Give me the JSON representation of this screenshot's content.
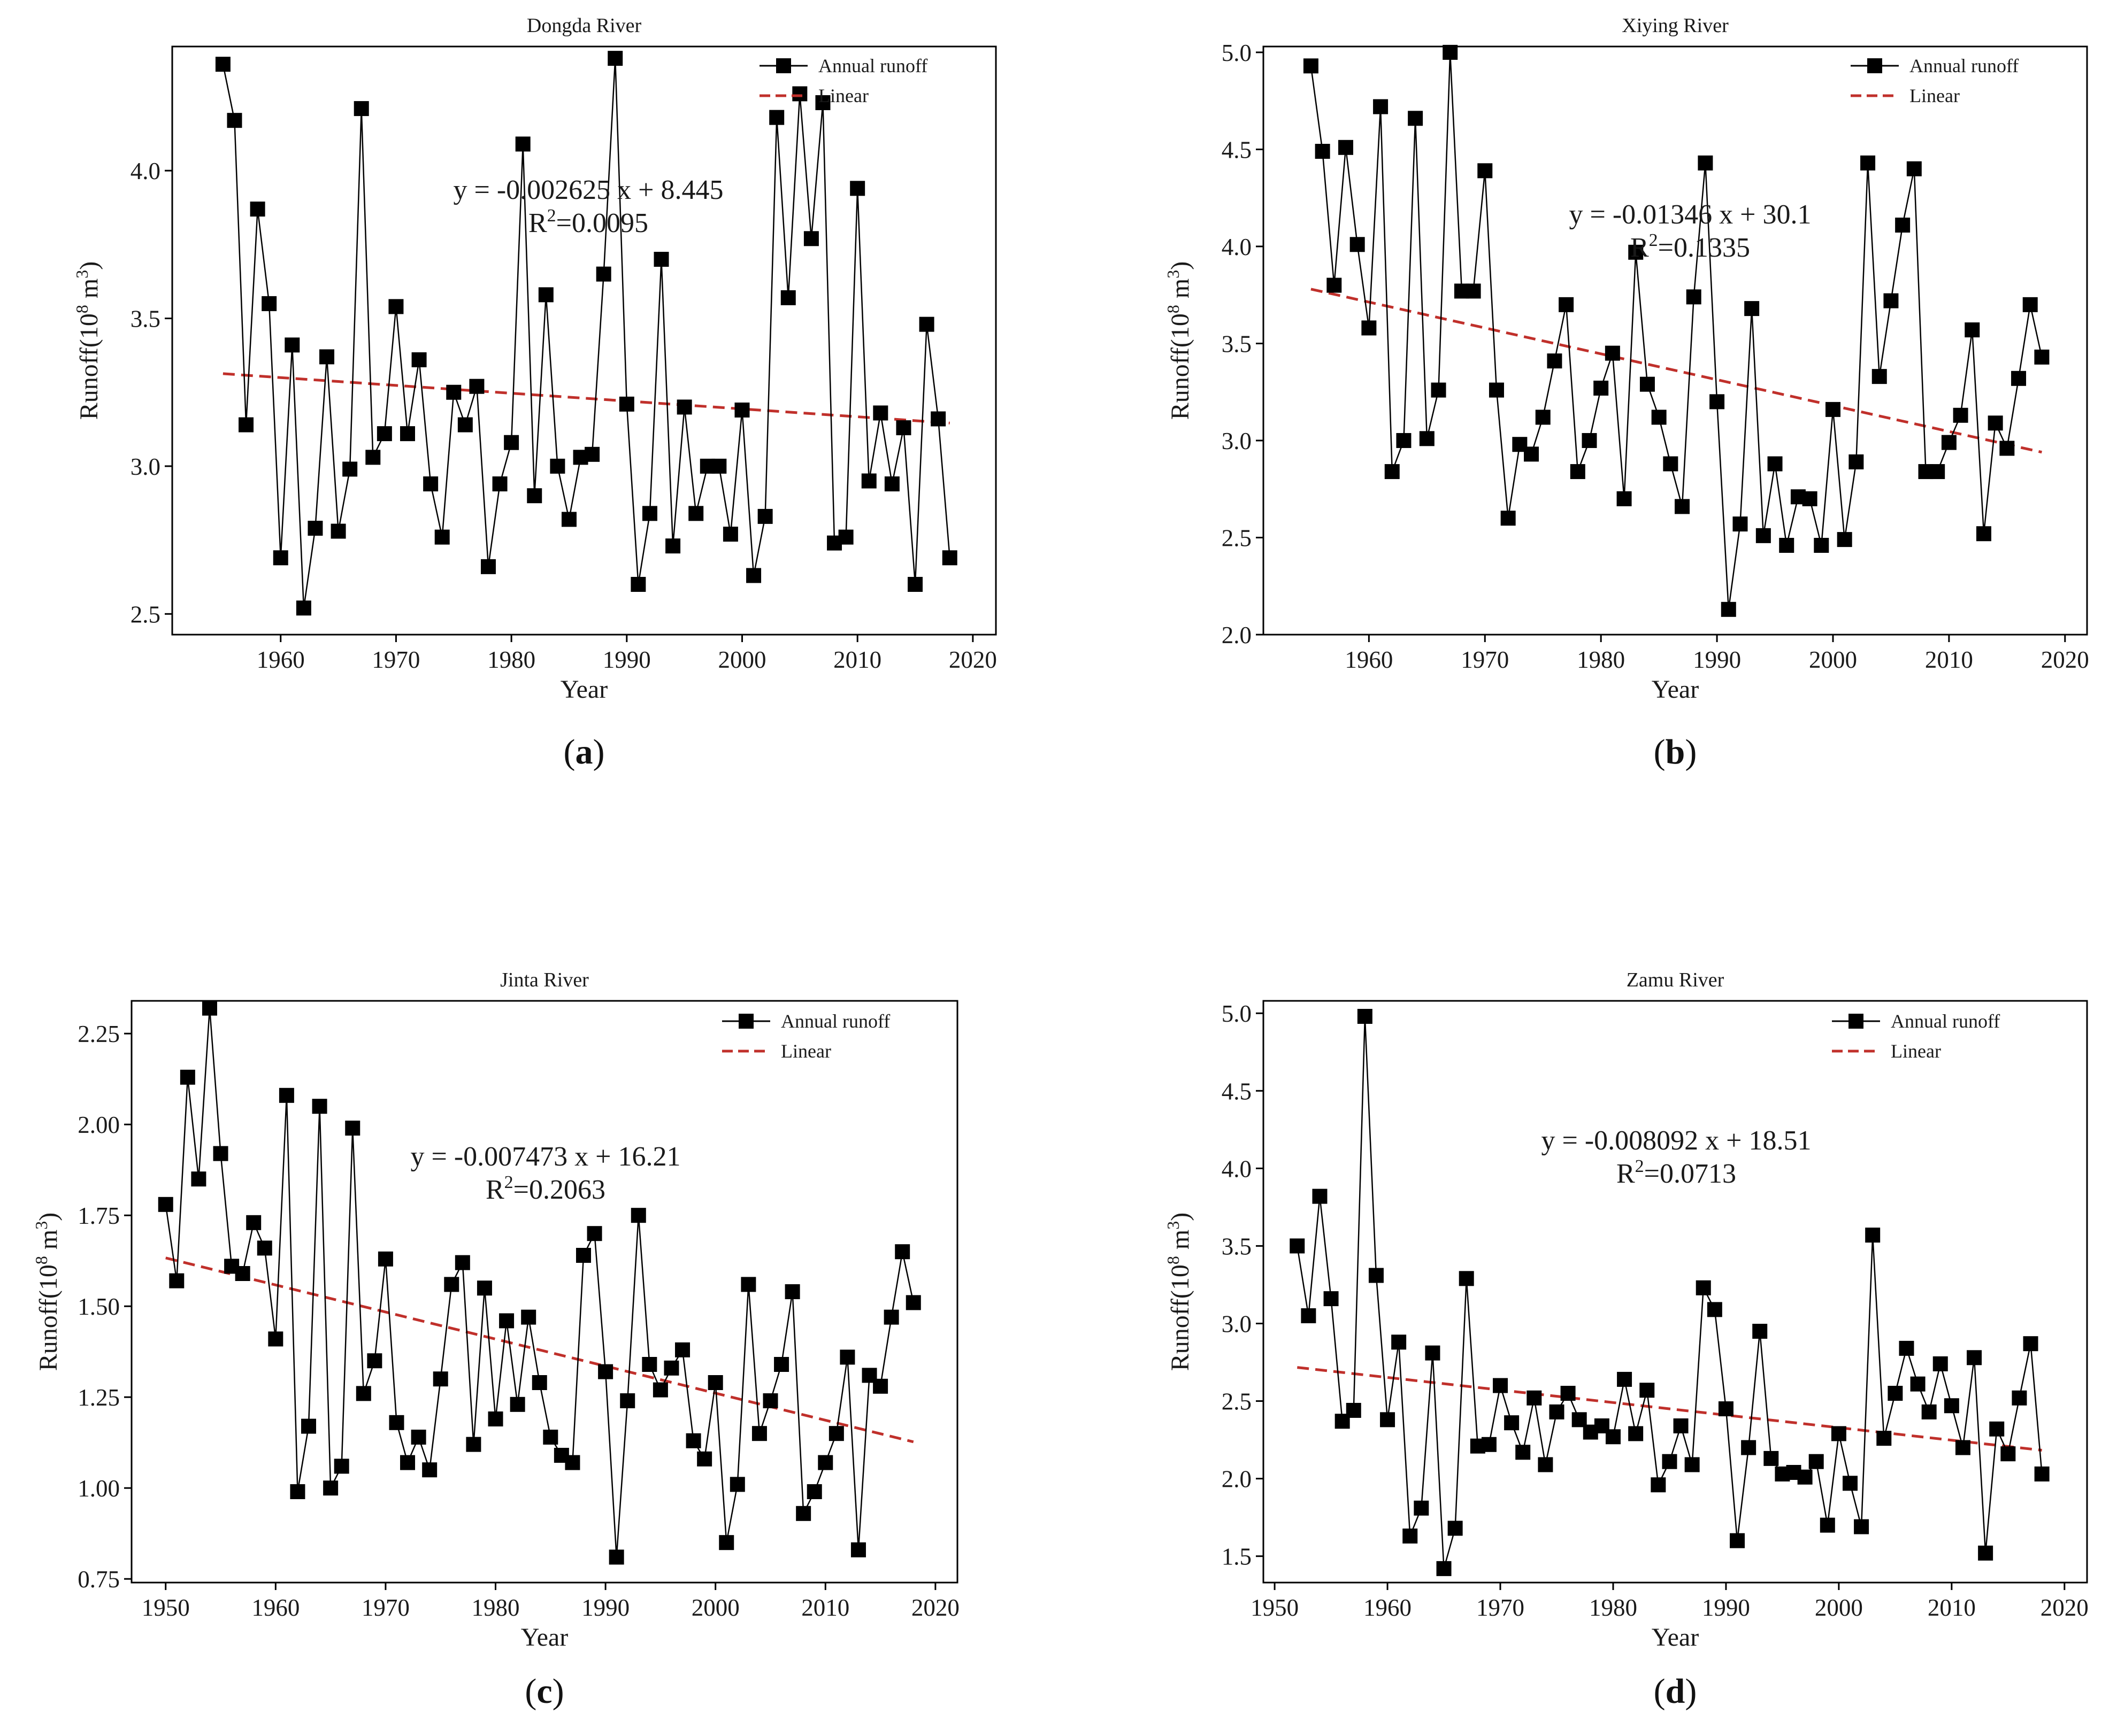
{
  "legend": {
    "series": "Annual runoff",
    "trend": "Linear"
  },
  "colors": {
    "series": "#000000",
    "trend": "#c0302b"
  },
  "chart_data": [
    {
      "type": "line",
      "title": "Dongda River",
      "caption": {
        "open": "(",
        "letter": "a",
        "close": ")"
      },
      "xlabel": "Year",
      "ylabel": {
        "main": "Runoff(10",
        "sup1": "8",
        "mid": " m",
        "sup2": "3",
        "end": ")"
      },
      "xlim": [
        1950.6,
        2022
      ],
      "ylim": [
        2.43,
        4.42
      ],
      "xticks": [
        1960,
        1970,
        1980,
        1990,
        2000,
        2010,
        2020
      ],
      "yticks": [
        2.5,
        3.0,
        3.5,
        4.0
      ],
      "ytick_labels": [
        "2.5",
        "3.0",
        "3.5",
        "4.0"
      ],
      "equation": {
        "line1": "y = -0.002625 x + 8.445",
        "line2_prefix": "R",
        "line2_sup": "2",
        "line2_suffix": "=0.0095"
      },
      "trend": {
        "x": [
          1955,
          2018
        ],
        "y": [
          3.313,
          3.146
        ]
      },
      "series": [
        {
          "name": "Annual runoff",
          "x": [
            1955,
            1956,
            1957,
            1958,
            1959,
            1960,
            1961,
            1962,
            1963,
            1964,
            1965,
            1966,
            1967,
            1968,
            1969,
            1970,
            1971,
            1972,
            1973,
            1974,
            1975,
            1976,
            1977,
            1978,
            1979,
            1980,
            1981,
            1982,
            1983,
            1984,
            1985,
            1986,
            1987,
            1988,
            1989,
            1990,
            1991,
            1992,
            1993,
            1994,
            1995,
            1996,
            1997,
            1998,
            1999,
            2000,
            2001,
            2002,
            2003,
            2004,
            2005,
            2006,
            2007,
            2008,
            2009,
            2010,
            2011,
            2012,
            2013,
            2014,
            2015,
            2016,
            2017,
            2018
          ],
          "y": [
            4.36,
            4.17,
            3.14,
            3.87,
            3.55,
            2.69,
            3.41,
            2.52,
            2.79,
            3.37,
            2.78,
            2.99,
            4.21,
            3.03,
            3.11,
            3.54,
            3.11,
            3.36,
            2.94,
            2.76,
            3.25,
            3.14,
            3.27,
            2.66,
            2.94,
            3.08,
            4.09,
            2.9,
            3.58,
            3.0,
            2.82,
            3.03,
            3.04,
            3.65,
            4.38,
            3.21,
            2.6,
            2.84,
            3.7,
            2.73,
            3.2,
            2.84,
            3.0,
            3.0,
            2.77,
            3.19,
            2.63,
            2.83,
            4.18,
            3.57,
            4.26,
            3.77,
            4.23,
            2.74,
            2.76,
            3.94,
            2.95,
            3.18,
            2.94,
            3.13,
            2.6,
            3.48,
            3.16,
            2.69
          ]
        }
      ]
    },
    {
      "type": "line",
      "title": "Xiying River",
      "caption": {
        "open": "(",
        "letter": "b",
        "close": ")"
      },
      "xlabel": "Year",
      "ylabel": {
        "main": "Runoff(10",
        "sup1": "8",
        "mid": " m",
        "sup2": "3",
        "end": ")"
      },
      "xlim": [
        1950.9,
        2021.9
      ],
      "ylim": [
        2.0,
        5.03
      ],
      "xticks": [
        1960,
        1970,
        1980,
        1990,
        2000,
        2010,
        2020
      ],
      "yticks": [
        2.0,
        2.5,
        3.0,
        3.5,
        4.0,
        4.5,
        5.0
      ],
      "ytick_labels": [
        "2.0",
        "2.5",
        "3.0",
        "3.5",
        "4.0",
        "4.5",
        "5.0"
      ],
      "equation": {
        "line1": "y = -0.01346 x + 30.1",
        "line2_prefix": "R",
        "line2_sup": "2",
        "line2_suffix": "=0.1335"
      },
      "trend": {
        "x": [
          1955,
          2018
        ],
        "y": [
          3.78,
          2.94
        ]
      },
      "series": [
        {
          "name": "Annual runoff",
          "x": [
            1955,
            1956,
            1957,
            1958,
            1959,
            1960,
            1961,
            1962,
            1963,
            1964,
            1965,
            1966,
            1967,
            1968,
            1969,
            1970,
            1971,
            1972,
            1973,
            1974,
            1975,
            1976,
            1977,
            1978,
            1979,
            1980,
            1981,
            1982,
            1983,
            1984,
            1985,
            1986,
            1987,
            1988,
            1989,
            1990,
            1991,
            1992,
            1993,
            1994,
            1995,
            1996,
            1997,
            1998,
            1999,
            2000,
            2001,
            2002,
            2003,
            2004,
            2005,
            2006,
            2007,
            2008,
            2009,
            2010,
            2011,
            2012,
            2013,
            2014,
            2015,
            2016,
            2017,
            2018
          ],
          "y": [
            4.93,
            4.49,
            3.8,
            4.51,
            4.01,
            3.58,
            4.72,
            2.84,
            3.0,
            4.66,
            3.01,
            3.26,
            5.0,
            3.77,
            3.77,
            4.39,
            3.26,
            2.6,
            2.98,
            2.93,
            3.12,
            3.41,
            3.7,
            2.84,
            3.0,
            3.27,
            3.45,
            2.7,
            3.97,
            3.29,
            3.12,
            2.88,
            2.66,
            3.74,
            4.43,
            3.2,
            2.13,
            2.57,
            3.68,
            2.51,
            2.88,
            2.46,
            2.71,
            2.7,
            2.46,
            3.16,
            2.49,
            2.89,
            4.43,
            3.33,
            3.72,
            4.11,
            4.4,
            2.84,
            2.84,
            2.99,
            3.13,
            3.57,
            2.52,
            3.09,
            2.96,
            3.32,
            3.7,
            3.43
          ]
        }
      ]
    },
    {
      "type": "line",
      "title": "Jinta River",
      "caption": {
        "open": "(",
        "letter": "c",
        "close": ")"
      },
      "xlabel": "Year",
      "ylabel": {
        "main": "Runoff(10",
        "sup1": "8",
        "mid": " m",
        "sup2": "3",
        "end": ")"
      },
      "xlim": [
        1946.9,
        2022
      ],
      "ylim": [
        0.74,
        2.34
      ],
      "xticks": [
        1950,
        1960,
        1970,
        1980,
        1990,
        2000,
        2010,
        2020
      ],
      "yticks": [
        0.75,
        1.0,
        1.25,
        1.5,
        1.75,
        2.0,
        2.25
      ],
      "ytick_labels": [
        "0.75",
        "1.00",
        "1.25",
        "1.50",
        "1.75",
        "2.00",
        "2.25"
      ],
      "equation": {
        "line1": "y = -0.007473 x + 16.21",
        "line2_prefix": "R",
        "line2_sup": "2",
        "line2_suffix": "=0.2063"
      },
      "trend": {
        "x": [
          1950,
          2018
        ],
        "y": [
          1.633,
          1.127
        ]
      },
      "series": [
        {
          "name": "Annual runoff",
          "x": [
            1950,
            1951,
            1952,
            1953,
            1954,
            1955,
            1956,
            1957,
            1958,
            1959,
            1960,
            1961,
            1962,
            1963,
            1964,
            1965,
            1966,
            1967,
            1968,
            1969,
            1970,
            1971,
            1972,
            1973,
            1974,
            1975,
            1976,
            1977,
            1978,
            1979,
            1980,
            1981,
            1982,
            1983,
            1984,
            1985,
            1986,
            1987,
            1988,
            1989,
            1990,
            1991,
            1992,
            1993,
            1994,
            1995,
            1996,
            1997,
            1998,
            1999,
            2000,
            2001,
            2002,
            2003,
            2004,
            2005,
            2006,
            2007,
            2008,
            2009,
            2010,
            2011,
            2012,
            2013,
            2014,
            2015,
            2016,
            2017,
            2018
          ],
          "y": [
            1.78,
            1.57,
            2.13,
            1.85,
            2.32,
            1.92,
            1.61,
            1.59,
            1.73,
            1.66,
            1.41,
            2.08,
            0.99,
            1.17,
            2.05,
            1.0,
            1.06,
            1.99,
            1.26,
            1.35,
            1.63,
            1.18,
            1.07,
            1.14,
            1.05,
            1.3,
            1.56,
            1.62,
            1.12,
            1.55,
            1.19,
            1.46,
            1.23,
            1.47,
            1.29,
            1.14,
            1.09,
            1.07,
            1.64,
            1.7,
            1.32,
            0.81,
            1.24,
            1.75,
            1.34,
            1.27,
            1.33,
            1.38,
            1.13,
            1.08,
            1.29,
            0.85,
            1.01,
            1.56,
            1.15,
            1.24,
            1.34,
            1.54,
            0.93,
            0.99,
            1.07,
            1.15,
            1.36,
            0.83,
            1.31,
            1.28,
            1.47,
            1.65,
            1.51
          ]
        }
      ]
    },
    {
      "type": "line",
      "title": "Zamu River",
      "caption": {
        "open": "(",
        "letter": "d",
        "close": ")"
      },
      "xlabel": "Year",
      "ylabel": {
        "main": "Runoff(10",
        "sup1": "8",
        "mid": " m",
        "sup2": "3",
        "end": ")"
      },
      "xlim": [
        1949,
        2022
      ],
      "ylim": [
        1.33,
        5.08
      ],
      "xticks": [
        1950,
        1960,
        1970,
        1980,
        1990,
        2000,
        2010,
        2020
      ],
      "yticks": [
        1.5,
        2.0,
        2.5,
        3.0,
        3.5,
        4.0,
        4.5,
        5.0
      ],
      "ytick_labels": [
        "1.5",
        "2.0",
        "2.5",
        "3.0",
        "3.5",
        "4.0",
        "4.5",
        "5.0"
      ],
      "equation": {
        "line1": "y = -0.008092 x + 18.51",
        "line2_prefix": "R",
        "line2_sup": "2",
        "line2_suffix": "=0.0713"
      },
      "trend": {
        "x": [
          1952,
          2018
        ],
        "y": [
          2.717,
          2.183
        ]
      },
      "series": [
        {
          "name": "Annual runoff",
          "x": [
            1952,
            1953,
            1954,
            1955,
            1956,
            1957,
            1958,
            1959,
            1960,
            1961,
            1962,
            1963,
            1964,
            1965,
            1966,
            1967,
            1968,
            1969,
            1970,
            1971,
            1972,
            1973,
            1974,
            1975,
            1976,
            1977,
            1978,
            1979,
            1980,
            1981,
            1982,
            1983,
            1984,
            1985,
            1986,
            1987,
            1988,
            1989,
            1990,
            1991,
            1992,
            1993,
            1994,
            1995,
            1996,
            1997,
            1998,
            1999,
            2000,
            2001,
            2002,
            2003,
            2004,
            2005,
            2006,
            2007,
            2008,
            2009,
            2010,
            2011,
            2012,
            2013,
            2014,
            2015,
            2016,
            2017,
            2018
          ],
          "y": [
            3.5,
            3.05,
            3.82,
            3.16,
            2.37,
            2.44,
            4.98,
            3.31,
            2.38,
            2.88,
            1.63,
            1.81,
            2.81,
            1.42,
            1.68,
            3.29,
            2.21,
            2.22,
            2.6,
            2.36,
            2.17,
            2.52,
            2.09,
            2.43,
            2.55,
            2.38,
            2.3,
            2.34,
            2.27,
            2.64,
            2.29,
            2.57,
            1.96,
            2.11,
            2.34,
            2.09,
            3.23,
            3.09,
            2.45,
            1.6,
            2.2,
            2.95,
            2.13,
            2.03,
            2.04,
            2.01,
            2.11,
            1.7,
            2.29,
            1.97,
            1.69,
            3.57,
            2.26,
            2.55,
            2.84,
            2.61,
            2.43,
            2.74,
            2.47,
            2.2,
            2.78,
            1.52,
            2.32,
            2.16,
            2.52,
            2.87,
            2.03
          ]
        }
      ]
    }
  ]
}
